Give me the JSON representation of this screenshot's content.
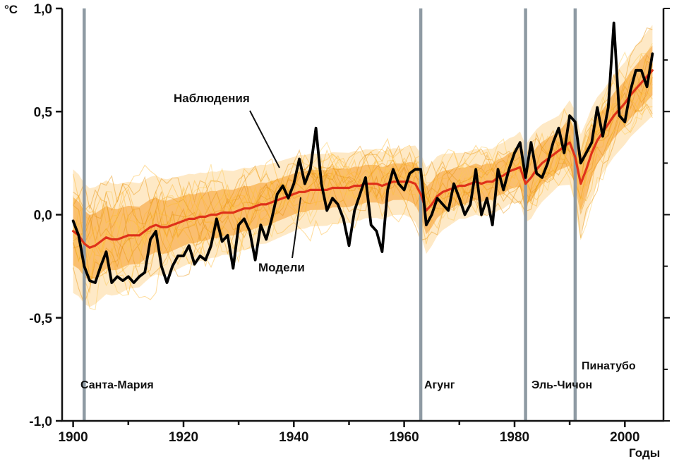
{
  "chart_data": {
    "type": "line",
    "title": "",
    "ylabel": "°C",
    "xlabel": "Годы",
    "ylim": [
      -1.0,
      1.0
    ],
    "xlim": [
      1898,
      2007
    ],
    "x0": 1900,
    "dx": 1,
    "grid": false,
    "legend_position": "none",
    "x_ticks": [
      1900,
      1920,
      1940,
      1960,
      1980,
      2000
    ],
    "x_tick_labels": [
      "1900",
      "1920",
      "1940",
      "1960",
      "1980",
      "2000"
    ],
    "y_ticks": [
      1.0,
      0.5,
      0.0,
      -0.5,
      -1.0
    ],
    "y_tick_labels": [
      "1,0",
      "0,5",
      "0,0",
      "-0,5",
      "-1,0"
    ],
    "series": [
      {
        "name": "Наблюдения",
        "color": "#000000",
        "values": [
          -0.03,
          -0.1,
          -0.25,
          -0.32,
          -0.33,
          -0.25,
          -0.18,
          -0.33,
          -0.3,
          -0.32,
          -0.3,
          -0.33,
          -0.3,
          -0.28,
          -0.12,
          -0.08,
          -0.25,
          -0.33,
          -0.25,
          -0.2,
          -0.2,
          -0.15,
          -0.24,
          -0.2,
          -0.22,
          -0.15,
          -0.02,
          -0.13,
          -0.1,
          -0.26,
          -0.05,
          -0.02,
          -0.08,
          -0.22,
          -0.05,
          -0.12,
          -0.02,
          0.1,
          0.14,
          0.08,
          0.15,
          0.27,
          0.15,
          0.22,
          0.42,
          0.15,
          0.02,
          0.08,
          0.05,
          -0.02,
          -0.15,
          0.02,
          0.1,
          0.18,
          -0.05,
          -0.08,
          -0.18,
          0.12,
          0.22,
          0.15,
          0.12,
          0.2,
          0.22,
          0.22,
          -0.05,
          0.0,
          0.08,
          0.05,
          0.02,
          0.15,
          0.08,
          0.0,
          0.05,
          0.22,
          0.0,
          0.08,
          -0.05,
          0.22,
          0.12,
          0.22,
          0.3,
          0.35,
          0.18,
          0.35,
          0.2,
          0.18,
          0.25,
          0.35,
          0.42,
          0.3,
          0.48,
          0.45,
          0.25,
          0.3,
          0.35,
          0.52,
          0.38,
          0.52,
          0.93,
          0.48,
          0.45,
          0.6,
          0.7,
          0.7,
          0.62,
          0.78
        ]
      },
      {
        "name": "Модели",
        "color": "#df3119",
        "values": [
          -0.08,
          -0.1,
          -0.14,
          -0.16,
          -0.15,
          -0.13,
          -0.11,
          -0.12,
          -0.12,
          -0.11,
          -0.1,
          -0.1,
          -0.1,
          -0.08,
          -0.06,
          -0.05,
          -0.06,
          -0.06,
          -0.05,
          -0.04,
          -0.03,
          -0.02,
          -0.02,
          -0.01,
          -0.01,
          0.0,
          0.0,
          0.01,
          0.01,
          0.01,
          0.02,
          0.03,
          0.03,
          0.04,
          0.05,
          0.05,
          0.06,
          0.07,
          0.08,
          0.09,
          0.1,
          0.11,
          0.11,
          0.12,
          0.12,
          0.12,
          0.12,
          0.13,
          0.13,
          0.13,
          0.13,
          0.14,
          0.14,
          0.15,
          0.15,
          0.15,
          0.14,
          0.15,
          0.16,
          0.16,
          0.16,
          0.16,
          0.15,
          0.1,
          0.02,
          0.05,
          0.09,
          0.11,
          0.12,
          0.13,
          0.14,
          0.14,
          0.15,
          0.16,
          0.15,
          0.16,
          0.16,
          0.18,
          0.19,
          0.21,
          0.22,
          0.23,
          0.15,
          0.18,
          0.22,
          0.25,
          0.27,
          0.29,
          0.31,
          0.33,
          0.35,
          0.28,
          0.15,
          0.22,
          0.3,
          0.36,
          0.4,
          0.44,
          0.48,
          0.51,
          0.54,
          0.58,
          0.61,
          0.64,
          0.67,
          0.7
        ]
      }
    ],
    "ensemble_band": {
      "description": "разброс ансамбля моделей (оранжевая полоса)",
      "spread_points": [
        [
          1900,
          0.3
        ],
        [
          1910,
          0.26
        ],
        [
          1920,
          0.22
        ],
        [
          1930,
          0.2
        ],
        [
          1940,
          0.18
        ],
        [
          1950,
          0.17
        ],
        [
          1960,
          0.16
        ],
        [
          1964,
          0.21
        ],
        [
          1970,
          0.16
        ],
        [
          1980,
          0.16
        ],
        [
          1983,
          0.2
        ],
        [
          1988,
          0.17
        ],
        [
          1992,
          0.24
        ],
        [
          1996,
          0.2
        ],
        [
          2000,
          0.2
        ],
        [
          2005,
          0.22
        ]
      ]
    },
    "volcanoes": [
      {
        "name": "Санта-Мария",
        "year": 1902
      },
      {
        "name": "Агунг",
        "year": 1963
      },
      {
        "name": "Эль-Чичон",
        "year": 1982
      },
      {
        "name": "Пинатубо",
        "year": 1991
      }
    ],
    "colors": {
      "ensemble_outer": "#fcc469",
      "ensemble_core": "#f6941a",
      "ensemble_lines": [
        "#e8920c",
        "#ffb52e",
        "#fcca55"
      ],
      "volcano_line": "#8e9aa3",
      "axis": "#111111"
    }
  }
}
